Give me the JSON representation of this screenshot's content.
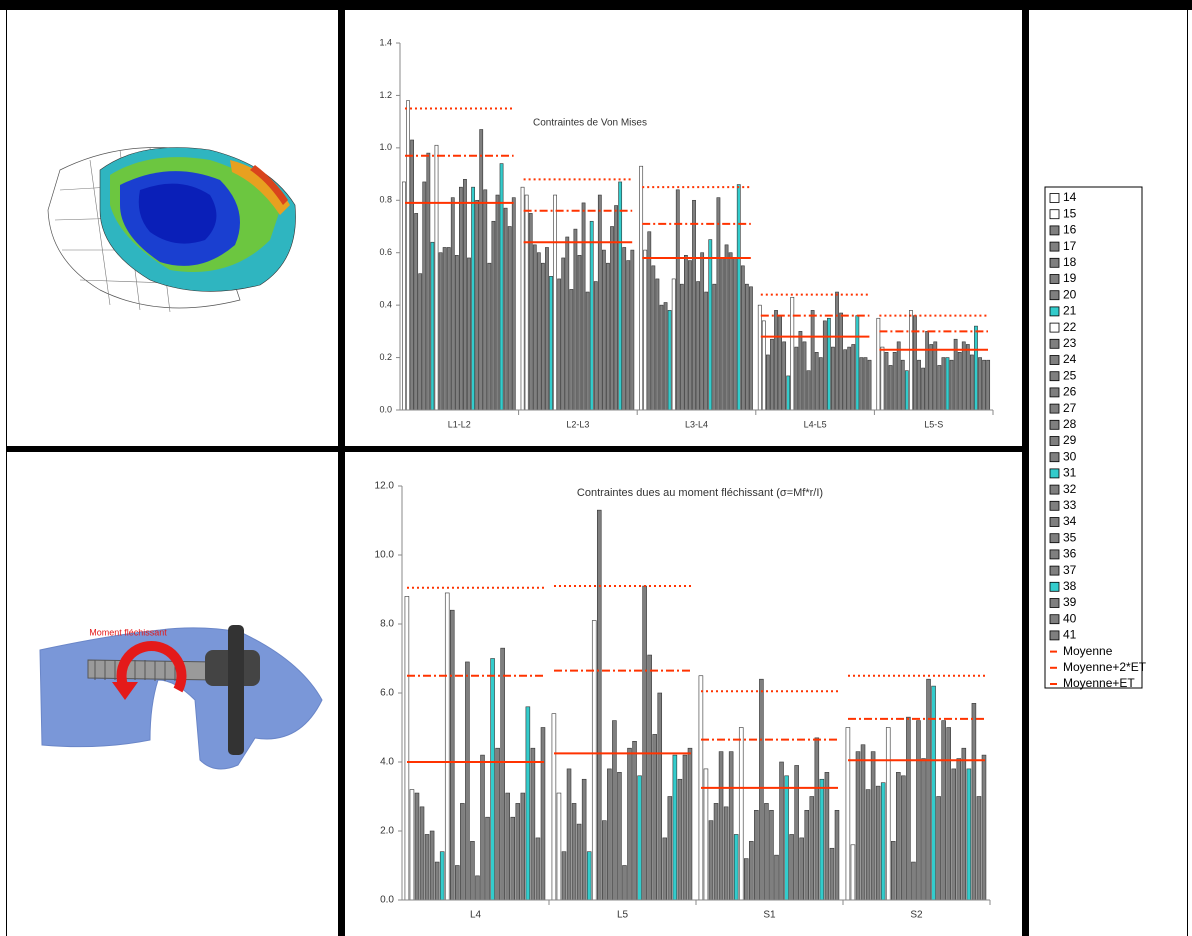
{
  "annotation": "Moment fléchissant",
  "legend": [
    {
      "name": "14",
      "color": "#ffffff",
      "kind": "bar"
    },
    {
      "name": "15",
      "color": "#ffffff",
      "kind": "bar"
    },
    {
      "name": "16",
      "color": "#7f7f7f",
      "kind": "bar"
    },
    {
      "name": "17",
      "color": "#7f7f7f",
      "kind": "bar"
    },
    {
      "name": "18",
      "color": "#7f7f7f",
      "kind": "bar"
    },
    {
      "name": "19",
      "color": "#7f7f7f",
      "kind": "bar"
    },
    {
      "name": "20",
      "color": "#7f7f7f",
      "kind": "bar"
    },
    {
      "name": "21",
      "color": "#33cccc",
      "kind": "bar"
    },
    {
      "name": "22",
      "color": "#ffffff",
      "kind": "bar"
    },
    {
      "name": "23",
      "color": "#7f7f7f",
      "kind": "bar"
    },
    {
      "name": "24",
      "color": "#7f7f7f",
      "kind": "bar"
    },
    {
      "name": "25",
      "color": "#7f7f7f",
      "kind": "bar"
    },
    {
      "name": "26",
      "color": "#7f7f7f",
      "kind": "bar"
    },
    {
      "name": "27",
      "color": "#7f7f7f",
      "kind": "bar"
    },
    {
      "name": "28",
      "color": "#7f7f7f",
      "kind": "bar"
    },
    {
      "name": "29",
      "color": "#7f7f7f",
      "kind": "bar"
    },
    {
      "name": "30",
      "color": "#7f7f7f",
      "kind": "bar"
    },
    {
      "name": "31",
      "color": "#33cccc",
      "kind": "bar"
    },
    {
      "name": "32",
      "color": "#7f7f7f",
      "kind": "bar"
    },
    {
      "name": "33",
      "color": "#7f7f7f",
      "kind": "bar"
    },
    {
      "name": "34",
      "color": "#7f7f7f",
      "kind": "bar"
    },
    {
      "name": "35",
      "color": "#7f7f7f",
      "kind": "bar"
    },
    {
      "name": "36",
      "color": "#7f7f7f",
      "kind": "bar"
    },
    {
      "name": "37",
      "color": "#7f7f7f",
      "kind": "bar"
    },
    {
      "name": "38",
      "color": "#33cccc",
      "kind": "bar"
    },
    {
      "name": "39",
      "color": "#7f7f7f",
      "kind": "bar"
    },
    {
      "name": "40",
      "color": "#7f7f7f",
      "kind": "bar"
    },
    {
      "name": "41",
      "color": "#7f7f7f",
      "kind": "bar"
    },
    {
      "name": "Moyenne",
      "color": "#ff3300",
      "kind": "line",
      "style": "solid"
    },
    {
      "name": "Moyenne+2*ET",
      "color": "#ff3300",
      "kind": "line",
      "style": "dotted"
    },
    {
      "name": "Moyenne+ET",
      "color": "#ff3300",
      "kind": "line",
      "style": "dashdot"
    }
  ],
  "chart_data": [
    {
      "type": "bar",
      "title": "Contraintes de Von Mises",
      "categories": [
        "L1-L2",
        "L2-L3",
        "L3-L4",
        "L4-L5",
        "L5-S"
      ],
      "ylim": [
        0,
        1.4
      ],
      "yticks": [
        {
          "value": 0,
          "label": "0.0"
        },
        0.2,
        0.4,
        0.6,
        0.8,
        {
          "value": 1,
          "label": "1.0"
        },
        1.2,
        1.4
      ],
      "series": [
        {
          "values": [
            0.87,
            0.85,
            0.93,
            0.4,
            0.35
          ]
        },
        {
          "values": [
            1.18,
            0.82,
            0.61,
            0.34,
            0.24
          ]
        },
        {
          "values": [
            1.03,
            0.75,
            0.68,
            0.21,
            0.22
          ]
        },
        {
          "values": [
            0.75,
            0.63,
            0.55,
            0.27,
            0.17
          ]
        },
        {
          "values": [
            0.52,
            0.6,
            0.5,
            0.38,
            0.22
          ]
        },
        {
          "values": [
            0.87,
            0.56,
            0.4,
            0.36,
            0.26
          ]
        },
        {
          "values": [
            0.98,
            0.62,
            0.41,
            0.26,
            0.19
          ]
        },
        {
          "values": [
            0.64,
            0.51,
            0.38,
            0.13,
            0.15
          ]
        },
        {
          "values": [
            1.01,
            0.82,
            0.5,
            0.43,
            0.38
          ]
        },
        {
          "values": [
            0.6,
            0.5,
            0.84,
            0.24,
            0.36
          ]
        },
        {
          "values": [
            0.62,
            0.58,
            0.48,
            0.3,
            0.19
          ]
        },
        {
          "values": [
            0.62,
            0.66,
            0.59,
            0.26,
            0.16
          ]
        },
        {
          "values": [
            0.81,
            0.46,
            0.57,
            0.15,
            0.3
          ]
        },
        {
          "values": [
            0.59,
            0.69,
            0.8,
            0.38,
            0.25
          ]
        },
        {
          "values": [
            0.85,
            0.59,
            0.49,
            0.22,
            0.26
          ]
        },
        {
          "values": [
            0.88,
            0.79,
            0.6,
            0.2,
            0.17
          ]
        },
        {
          "values": [
            0.58,
            0.45,
            0.45,
            0.34,
            0.2
          ]
        },
        {
          "values": [
            0.85,
            0.72,
            0.65,
            0.35,
            0.2
          ]
        },
        {
          "values": [
            0.8,
            0.49,
            0.48,
            0.24,
            0.19
          ]
        },
        {
          "values": [
            1.07,
            0.82,
            0.81,
            0.45,
            0.27
          ]
        },
        {
          "values": [
            0.84,
            0.61,
            0.58,
            0.37,
            0.22
          ]
        },
        {
          "values": [
            0.56,
            0.56,
            0.63,
            0.23,
            0.26
          ]
        },
        {
          "values": [
            0.72,
            0.7,
            0.6,
            0.24,
            0.25
          ]
        },
        {
          "values": [
            0.82,
            0.78,
            0.58,
            0.25,
            0.21
          ]
        },
        {
          "values": [
            0.94,
            0.87,
            0.86,
            0.36,
            0.32
          ]
        },
        {
          "values": [
            0.77,
            0.62,
            0.55,
            0.2,
            0.2
          ]
        },
        {
          "values": [
            0.7,
            0.57,
            0.48,
            0.2,
            0.19
          ]
        },
        {
          "values": [
            0.81,
            0.61,
            0.47,
            0.19,
            0.19
          ]
        },
        {
          "values": [
            0.79,
            0.64,
            0.58,
            0.28,
            0.23
          ]
        },
        {
          "values": [
            1.15,
            0.88,
            0.85,
            0.44,
            0.36
          ]
        },
        {
          "values": [
            0.97,
            0.76,
            0.71,
            0.36,
            0.3
          ]
        }
      ]
    },
    {
      "type": "bar",
      "title": "Contraintes dues au moment fléchissant (σ=Mf*r/I)",
      "categories": [
        "L4",
        "L5",
        "S1",
        "S2"
      ],
      "ylim": [
        0,
        12
      ],
      "yticks": [
        {
          "value": 0,
          "label": "0.0"
        },
        {
          "value": 2,
          "label": "2.0"
        },
        {
          "value": 4,
          "label": "4.0"
        },
        {
          "value": 6,
          "label": "6.0"
        },
        {
          "value": 8,
          "label": "8.0"
        },
        {
          "value": 10,
          "label": "10.0"
        },
        {
          "value": 12,
          "label": "12.0"
        }
      ],
      "series": [
        {
          "values": [
            8.8,
            5.4,
            6.5,
            5.0
          ]
        },
        {
          "values": [
            3.2,
            3.1,
            3.8,
            1.6
          ]
        },
        {
          "values": [
            3.1,
            1.4,
            2.3,
            4.3
          ]
        },
        {
          "values": [
            2.7,
            3.8,
            2.8,
            4.5
          ]
        },
        {
          "values": [
            1.9,
            2.8,
            4.3,
            3.2
          ]
        },
        {
          "values": [
            2.0,
            2.2,
            2.7,
            4.3
          ]
        },
        {
          "values": [
            1.1,
            3.5,
            4.3,
            3.3
          ]
        },
        {
          "values": [
            1.4,
            1.4,
            1.9,
            3.4
          ]
        },
        {
          "values": [
            8.9,
            8.1,
            5.0,
            5.0
          ]
        },
        {
          "values": [
            8.4,
            11.3,
            1.2,
            1.7
          ]
        },
        {
          "values": [
            1.0,
            2.3,
            1.7,
            3.7
          ]
        },
        {
          "values": [
            2.8,
            3.8,
            2.6,
            3.6
          ]
        },
        {
          "values": [
            6.9,
            5.2,
            6.4,
            5.3
          ]
        },
        {
          "values": [
            1.7,
            3.7,
            2.8,
            1.1
          ]
        },
        {
          "values": [
            0.7,
            1.0,
            2.6,
            5.2
          ]
        },
        {
          "values": [
            4.2,
            4.4,
            1.3,
            4.1
          ]
        },
        {
          "values": [
            2.4,
            4.6,
            4.0,
            6.4
          ]
        },
        {
          "values": [
            7.0,
            3.6,
            3.6,
            6.2
          ]
        },
        {
          "values": [
            4.4,
            9.1,
            1.9,
            3.0
          ]
        },
        {
          "values": [
            7.3,
            7.1,
            3.9,
            5.2
          ]
        },
        {
          "values": [
            3.1,
            4.8,
            1.8,
            5.0
          ]
        },
        {
          "values": [
            2.4,
            6.0,
            2.6,
            3.8
          ]
        },
        {
          "values": [
            2.8,
            1.8,
            3.0,
            4.1
          ]
        },
        {
          "values": [
            3.1,
            3.0,
            4.7,
            4.4
          ]
        },
        {
          "values": [
            5.6,
            4.2,
            3.5,
            3.8
          ]
        },
        {
          "values": [
            4.4,
            3.5,
            3.7,
            5.7
          ]
        },
        {
          "values": [
            1.8,
            4.2,
            1.5,
            3.0
          ]
        },
        {
          "values": [
            5.0,
            4.4,
            2.6,
            4.2
          ]
        },
        {
          "values": [
            4.0,
            4.25,
            3.25,
            4.05
          ]
        },
        {
          "values": [
            9.05,
            9.1,
            6.05,
            6.5
          ]
        },
        {
          "values": [
            6.5,
            6.65,
            4.65,
            5.25
          ]
        }
      ]
    }
  ]
}
